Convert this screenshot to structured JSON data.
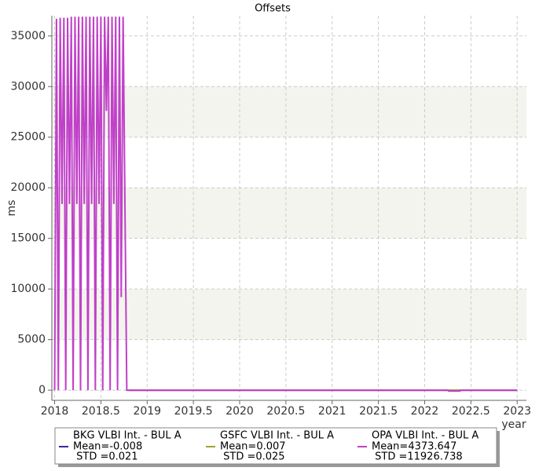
{
  "chart_data": {
    "type": "line",
    "title": "Offsets",
    "x_label": "year",
    "y_label": "ms",
    "xlim": [
      2017.97,
      2023.1
    ],
    "ylim": [
      -1000,
      37000
    ],
    "xticks": [
      2018,
      2018.5,
      2019,
      2019.5,
      2020,
      2020.5,
      2021,
      2021.5,
      2022,
      2022.5,
      2023
    ],
    "yticks": [
      0,
      5000,
      10000,
      15000,
      20000,
      25000,
      30000,
      35000
    ],
    "grid": true,
    "series": [
      {
        "name": "BKG VLBI Int. - BUL A",
        "mean_label": "Mean=-0.008",
        "std_label": " STD =0.021",
        "color": "#2e2e9e",
        "x": [
          2018.8,
          2020,
          2022,
          2023
        ],
        "values": [
          0,
          0,
          0,
          0
        ]
      },
      {
        "name": "GSFC VLBI Int. - BUL A",
        "mean_label": "Mean=0.007",
        "std_label": " STD =0.025",
        "color": "#a0a030",
        "x": [
          2018.8,
          2020,
          2022,
          2023
        ],
        "values": [
          0,
          0,
          0,
          0
        ]
      },
      {
        "name": "OPA VLBI Int. - BUL A",
        "mean_label": "Mean=4373.647",
        "std_label": " STD =11926.738",
        "color": "#c040c8",
        "x": [
          2018.0,
          2018.02,
          2018.04,
          2018.06,
          2018.08,
          2018.1,
          2018.12,
          2018.14,
          2018.16,
          2018.18,
          2018.2,
          2018.22,
          2018.24,
          2018.26,
          2018.28,
          2018.3,
          2018.32,
          2018.34,
          2018.36,
          2018.38,
          2018.4,
          2018.42,
          2018.44,
          2018.46,
          2018.48,
          2018.5,
          2018.52,
          2018.54,
          2018.56,
          2018.58,
          2018.6,
          2018.62,
          2018.64,
          2018.66,
          2018.68,
          2018.7,
          2018.72,
          2018.74,
          2018.76,
          2018.78,
          2018.8,
          2020,
          2022.25,
          2022.26,
          2022.38,
          2022.39,
          2023
        ],
        "values": [
          0,
          36700,
          0,
          36800,
          18400,
          36800,
          0,
          36800,
          18400,
          36900,
          0,
          36900,
          18400,
          36900,
          0,
          36900,
          18400,
          36900,
          0,
          36900,
          18400,
          36900,
          0,
          36900,
          18400,
          36900,
          0,
          36900,
          27600,
          36900,
          0,
          36900,
          18400,
          36900,
          0,
          36900,
          9200,
          36900,
          18400,
          0,
          0,
          0,
          0,
          -80,
          -80,
          0,
          0
        ]
      }
    ]
  }
}
